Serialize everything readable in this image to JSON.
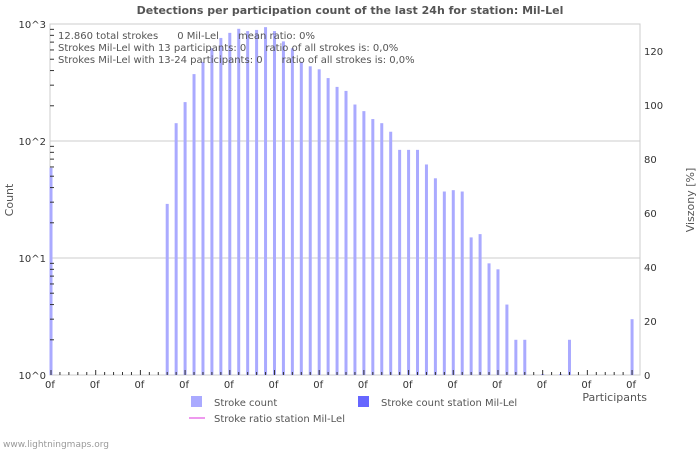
{
  "chart_data": {
    "type": "bar",
    "title": "Detections per participation count of the last 24h for station: Mil-Lel",
    "xlabel": "Participants",
    "ylabel": "Count",
    "y2label": "Viszony [%]",
    "yscale": "log",
    "ylim": [
      1,
      1000
    ],
    "y_ticks": [
      "10^0",
      "10^1",
      "10^2",
      "10^3"
    ],
    "y2lim": [
      0,
      130
    ],
    "y2_ticks": [
      "0",
      "20",
      "40",
      "60",
      "80",
      "100",
      "120"
    ],
    "x_tick_label": "0f",
    "x_tick_count": 14,
    "bins": 66,
    "series": [
      {
        "name": "Stroke count",
        "color": "#aaaaff",
        "values": [
          59,
          0,
          0,
          0,
          0,
          0,
          0,
          0,
          0,
          0,
          0,
          0,
          0,
          29,
          142,
          215,
          373,
          475,
          620,
          760,
          840,
          910,
          870,
          890,
          940,
          870,
          710,
          620,
          475,
          435,
          410,
          345,
          290,
          268,
          205,
          180,
          154,
          142,
          120,
          84,
          84,
          84,
          63,
          48,
          37,
          38,
          37,
          15,
          16,
          9,
          8,
          4,
          2,
          2,
          0,
          1,
          0,
          1,
          2,
          0,
          0,
          0,
          0,
          0,
          0,
          3
        ]
      },
      {
        "name": "Stroke count station Mil-Lel",
        "color": "#6666ff",
        "values": []
      },
      {
        "name": "Stroke ratio station Mil-Lel",
        "color": "#ee99ee",
        "values": []
      }
    ],
    "annotations": [
      "12.860 total strokes      0 Mil-Lel      mean ratio: 0%",
      "Strokes Mil-Lel with 13 participants: 0      ratio of all strokes is: 0,0%",
      "Strokes Mil-Lel with 13-24 participants: 0      ratio of all strokes is: 0,0%"
    ]
  },
  "footer": "www.lightningmaps.org"
}
